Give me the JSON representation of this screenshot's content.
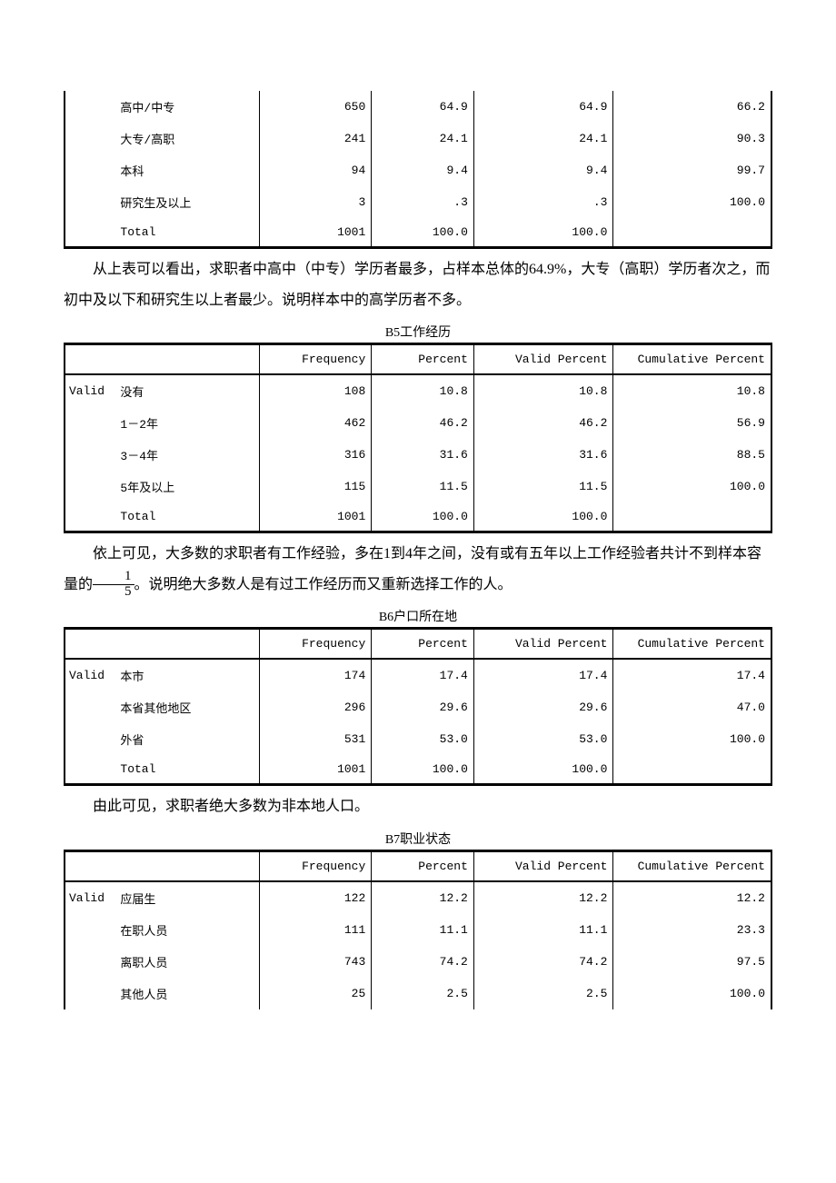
{
  "watermark": "",
  "table1": {
    "rows": [
      {
        "lab1": "",
        "lab2": "高中/中专",
        "freq": "650",
        "pct": "64.9",
        "vpct": "64.9",
        "cpct": "66.2"
      },
      {
        "lab1": "",
        "lab2": "大专/高职",
        "freq": "241",
        "pct": "24.1",
        "vpct": "24.1",
        "cpct": "90.3"
      },
      {
        "lab1": "",
        "lab2": "本科",
        "freq": "94",
        "pct": "9.4",
        "vpct": "9.4",
        "cpct": "99.7"
      },
      {
        "lab1": "",
        "lab2": "研究生及以上",
        "freq": "3",
        "pct": ".3",
        "vpct": ".3",
        "cpct": "100.0"
      },
      {
        "lab1": "",
        "lab2": "Total",
        "freq": "1001",
        "pct": "100.0",
        "vpct": "100.0",
        "cpct": ""
      }
    ]
  },
  "para1": "从上表可以看出，求职者中高中（中专）学历者最多，占样本总体的64.9%，大专（高职）学历者次之，而初中及以下和研究生以上者最少。说明样本中的高学历者不多。",
  "table2": {
    "caption": "B5工作经历",
    "headers": {
      "freq": "Frequency",
      "pct": "Percent",
      "vpct": "Valid Percent",
      "cpct": "Cumulative Percent"
    },
    "rows": [
      {
        "lab1": "Valid",
        "lab2": "没有",
        "freq": "108",
        "pct": "10.8",
        "vpct": "10.8",
        "cpct": "10.8"
      },
      {
        "lab1": "",
        "lab2": "1－2年",
        "freq": "462",
        "pct": "46.2",
        "vpct": "46.2",
        "cpct": "56.9"
      },
      {
        "lab1": "",
        "lab2": "3－4年",
        "freq": "316",
        "pct": "31.6",
        "vpct": "31.6",
        "cpct": "88.5"
      },
      {
        "lab1": "",
        "lab2": "5年及以上",
        "freq": "115",
        "pct": "11.5",
        "vpct": "11.5",
        "cpct": "100.0"
      },
      {
        "lab1": "",
        "lab2": "Total",
        "freq": "1001",
        "pct": "100.0",
        "vpct": "100.0",
        "cpct": ""
      }
    ]
  },
  "para2a": "依上可见，大多数的求职者有工作经验，多在1到4年之间，没有或有五年以上工作经验者共计不到样本容量的",
  "frac": {
    "num": "1",
    "den": "5"
  },
  "para2b": "。说明绝大多数人是有过工作经历而又重新选择工作的人。",
  "table3": {
    "caption": "B6户口所在地",
    "headers": {
      "freq": "Frequency",
      "pct": "Percent",
      "vpct": "Valid Percent",
      "cpct": "Cumulative Percent"
    },
    "rows": [
      {
        "lab1": "Valid",
        "lab2": "本市",
        "freq": "174",
        "pct": "17.4",
        "vpct": "17.4",
        "cpct": "17.4"
      },
      {
        "lab1": "",
        "lab2": "本省其他地区",
        "freq": "296",
        "pct": "29.6",
        "vpct": "29.6",
        "cpct": "47.0"
      },
      {
        "lab1": "",
        "lab2": "外省",
        "freq": "531",
        "pct": "53.0",
        "vpct": "53.0",
        "cpct": "100.0"
      },
      {
        "lab1": "",
        "lab2": "Total",
        "freq": "1001",
        "pct": "100.0",
        "vpct": "100.0",
        "cpct": ""
      }
    ]
  },
  "para3": "由此可见，求职者绝大多数为非本地人口。",
  "table4": {
    "caption": "B7职业状态",
    "headers": {
      "freq": "Frequency",
      "pct": "Percent",
      "vpct": "Valid Percent",
      "cpct": "Cumulative Percent"
    },
    "rows": [
      {
        "lab1": "Valid",
        "lab2": "应届生",
        "freq": "122",
        "pct": "12.2",
        "vpct": "12.2",
        "cpct": "12.2"
      },
      {
        "lab1": "",
        "lab2": "在职人员",
        "freq": "111",
        "pct": "11.1",
        "vpct": "11.1",
        "cpct": "23.3"
      },
      {
        "lab1": "",
        "lab2": "离职人员",
        "freq": "743",
        "pct": "74.2",
        "vpct": "74.2",
        "cpct": "97.5"
      },
      {
        "lab1": "",
        "lab2": "其他人员",
        "freq": "25",
        "pct": "2.5",
        "vpct": "2.5",
        "cpct": "100.0"
      }
    ]
  }
}
